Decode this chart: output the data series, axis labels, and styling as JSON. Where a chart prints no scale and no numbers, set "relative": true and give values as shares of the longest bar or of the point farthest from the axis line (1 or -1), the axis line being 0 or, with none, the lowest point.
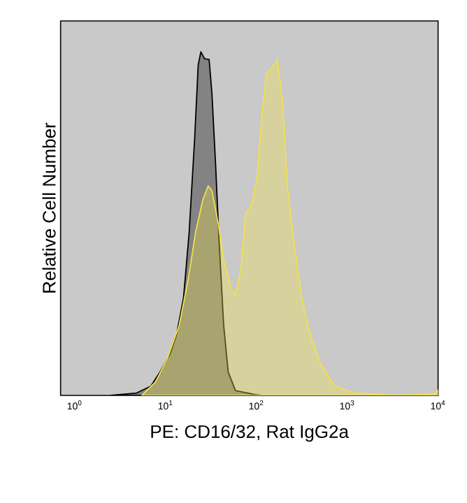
{
  "chart_data": {
    "type": "area",
    "relative": true,
    "log": "x",
    "xlabel": "PE: CD16/32, Rat IgG2a",
    "ylabel": "Relative Cell Number",
    "xlim": [
      0.7,
      10000
    ],
    "xticks": [
      {
        "value": 1,
        "label": "10$^{0}$"
      },
      {
        "value": 10,
        "label": "10$^{1}$"
      },
      {
        "value": 100,
        "label": "10$^{2}$"
      },
      {
        "value": 1000,
        "label": "10$^{3}$"
      },
      {
        "value": 10000,
        "label": "10$^{4}$"
      }
    ],
    "tick_labels": "x",
    "marker": "none",
    "line_style": "solid",
    "series": [
      {
        "color": "#000000",
        "x": [
          2.5,
          4.8,
          6.9,
          8.7,
          11.2,
          13.2,
          15.8,
          18.2,
          20.9,
          22.9,
          24.5,
          26.9,
          30.2,
          32.4,
          35.5,
          38.9,
          43.7,
          49,
          58.9,
          95.5,
          115
        ],
        "values": [
          0,
          0.007,
          0.027,
          0.068,
          0.12,
          0.176,
          0.285,
          0.474,
          0.745,
          0.962,
          1.0,
          0.98,
          0.978,
          0.88,
          0.678,
          0.447,
          0.203,
          0.068,
          0.014,
          0.003,
          0
        ]
      },
      {
        "color": "#f2e04a",
        "x": [
          5.5,
          7.8,
          10.5,
          14.1,
          17.8,
          21.4,
          25.7,
          29.5,
          32.4,
          38,
          43.7,
          52.5,
          58.9,
          67.6,
          75.9,
          89.1,
          102,
          115,
          129,
          155,
          170,
          195,
          219,
          263,
          316,
          380,
          501,
          724,
          1175,
          3388,
          8913,
          10000
        ],
        "values": [
          0,
          0.04,
          0.108,
          0.203,
          0.339,
          0.474,
          0.569,
          0.61,
          0.596,
          0.501,
          0.393,
          0.312,
          0.291,
          0.366,
          0.528,
          0.556,
          0.637,
          0.813,
          0.935,
          0.962,
          0.976,
          0.854,
          0.61,
          0.434,
          0.285,
          0.19,
          0.095,
          0.027,
          0.007,
          0,
          0.003,
          0.016
        ]
      }
    ]
  }
}
